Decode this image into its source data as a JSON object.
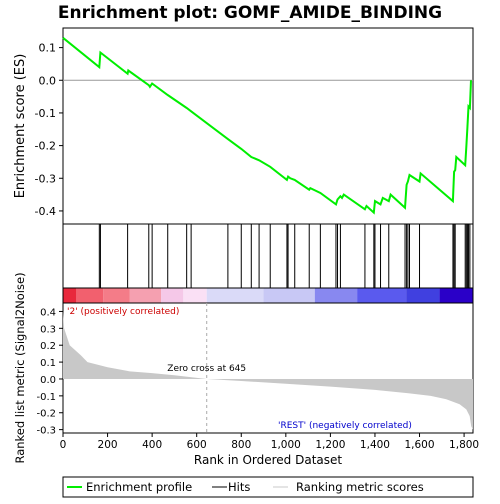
{
  "chart_data": {
    "type": "line",
    "title": "Enrichment plot: GOMF_AMIDE_BINDING",
    "es_panel": {
      "ylabel": "Enrichment score (ES)",
      "ylim": [
        -0.44,
        0.16
      ],
      "yticks": [
        0.1,
        0.0,
        -0.1,
        -0.2,
        -0.3,
        -0.4
      ],
      "ytick_labels": [
        "0.1",
        "0.0",
        "-0.1",
        "-0.2",
        "-0.3",
        "-0.4"
      ],
      "line_color": "#00ee00",
      "points": [
        [
          0,
          0.13
        ],
        [
          163,
          0.04
        ],
        [
          168,
          0.085
        ],
        [
          290,
          0.02
        ],
        [
          293,
          0.03
        ],
        [
          385,
          -0.015
        ],
        [
          390,
          -0.02
        ],
        [
          400,
          -0.01
        ],
        [
          470,
          -0.045
        ],
        [
          555,
          -0.085
        ],
        [
          575,
          -0.095
        ],
        [
          740,
          -0.18
        ],
        [
          800,
          -0.21
        ],
        [
          845,
          -0.235
        ],
        [
          880,
          -0.245
        ],
        [
          930,
          -0.265
        ],
        [
          1005,
          -0.305
        ],
        [
          1010,
          -0.295
        ],
        [
          1020,
          -0.3
        ],
        [
          1040,
          -0.305
        ],
        [
          1105,
          -0.335
        ],
        [
          1110,
          -0.33
        ],
        [
          1155,
          -0.345
        ],
        [
          1225,
          -0.38
        ],
        [
          1232,
          -0.365
        ],
        [
          1245,
          -0.355
        ],
        [
          1252,
          -0.36
        ],
        [
          1260,
          -0.35
        ],
        [
          1355,
          -0.395
        ],
        [
          1362,
          -0.385
        ],
        [
          1395,
          -0.405
        ],
        [
          1400,
          -0.37
        ],
        [
          1425,
          -0.38
        ],
        [
          1435,
          -0.36
        ],
        [
          1462,
          -0.37
        ],
        [
          1470,
          -0.35
        ],
        [
          1535,
          -0.39
        ],
        [
          1542,
          -0.32
        ],
        [
          1548,
          -0.31
        ],
        [
          1555,
          -0.29
        ],
        [
          1600,
          -0.31
        ],
        [
          1605,
          -0.285
        ],
        [
          1750,
          -0.37
        ],
        [
          1755,
          -0.28
        ],
        [
          1760,
          -0.275
        ],
        [
          1765,
          -0.235
        ],
        [
          1805,
          -0.26
        ],
        [
          1810,
          -0.205
        ],
        [
          1815,
          -0.145
        ],
        [
          1820,
          -0.08
        ],
        [
          1826,
          -0.085
        ],
        [
          1831,
          0.0
        ]
      ]
    },
    "hits": [
      163,
      168,
      290,
      385,
      400,
      470,
      555,
      575,
      740,
      800,
      845,
      880,
      930,
      1005,
      1010,
      1040,
      1105,
      1155,
      1225,
      1232,
      1245,
      1355,
      1395,
      1400,
      1425,
      1462,
      1535,
      1542,
      1548,
      1555,
      1600,
      1750,
      1755,
      1760,
      1805,
      1810,
      1815,
      1820,
      1826
    ],
    "color_bar": {
      "label_positive": "'2' (positively correlated)",
      "label_negative": "'REST' (negatively correlated)",
      "segments": [
        {
          "from": 0,
          "to": 60,
          "color": "#e8283c"
        },
        {
          "from": 60,
          "to": 180,
          "color": "#f2606e"
        },
        {
          "from": 180,
          "to": 300,
          "color": "#f47c88"
        },
        {
          "from": 300,
          "to": 440,
          "color": "#f5a0b0"
        },
        {
          "from": 440,
          "to": 540,
          "color": "#f5c8e8"
        },
        {
          "from": 540,
          "to": 645,
          "color": "#fae0f5"
        },
        {
          "from": 645,
          "to": 900,
          "color": "#dadaf8"
        },
        {
          "from": 900,
          "to": 1130,
          "color": "#c8c8f5"
        },
        {
          "from": 1130,
          "to": 1320,
          "color": "#8888f0"
        },
        {
          "from": 1320,
          "to": 1540,
          "color": "#5a5aee"
        },
        {
          "from": 1540,
          "to": 1690,
          "color": "#4040e0"
        },
        {
          "from": 1690,
          "to": 1840,
          "color": "#2a00c8"
        }
      ]
    },
    "metric_panel": {
      "ylabel": "Ranked list metric (Signal2Noise)",
      "ylim": [
        -0.32,
        0.45
      ],
      "yticks": [
        0.4,
        0.3,
        0.2,
        0.1,
        0.0,
        -0.1,
        -0.2,
        -0.3
      ],
      "ytick_labels": [
        "0.4",
        "0.3",
        "0.2",
        "0.1",
        "0.0",
        "-0.1",
        "-0.2",
        "-0.3"
      ],
      "zero_cross_label": "Zero cross at 645",
      "zero_cross_rank": 645,
      "points": [
        [
          0,
          0.4
        ],
        [
          5,
          0.3
        ],
        [
          30,
          0.2
        ],
        [
          80,
          0.14
        ],
        [
          110,
          0.1
        ],
        [
          200,
          0.07
        ],
        [
          300,
          0.045
        ],
        [
          400,
          0.035
        ],
        [
          500,
          0.022
        ],
        [
          645,
          0.0
        ],
        [
          800,
          -0.012
        ],
        [
          1000,
          -0.028
        ],
        [
          1200,
          -0.045
        ],
        [
          1400,
          -0.065
        ],
        [
          1550,
          -0.085
        ],
        [
          1650,
          -0.1
        ],
        [
          1720,
          -0.12
        ],
        [
          1780,
          -0.15
        ],
        [
          1810,
          -0.18
        ],
        [
          1825,
          -0.22
        ],
        [
          1832,
          -0.28
        ],
        [
          1840,
          -0.3
        ]
      ]
    },
    "xlabel": "Rank in Ordered Dataset",
    "xlim": [
      0,
      1840
    ],
    "xticks": [
      0,
      200,
      400,
      600,
      800,
      1000,
      1200,
      1400,
      1600,
      1800
    ],
    "xtick_labels": [
      "0",
      "200",
      "400",
      "600",
      "800",
      "1,000",
      "1,200",
      "1,400",
      "1,600",
      "1,800"
    ],
    "legend": [
      {
        "label": "Enrichment profile",
        "color": "#00ee00"
      },
      {
        "label": "Hits",
        "color": "#000000"
      },
      {
        "label": "Ranking metric scores",
        "color": "#c8c8c8"
      }
    ]
  }
}
